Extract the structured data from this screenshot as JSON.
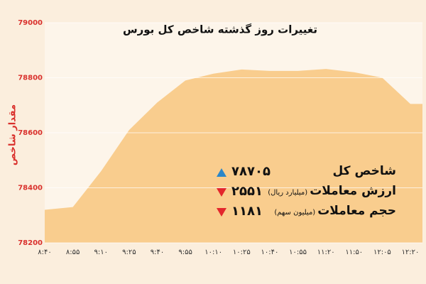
{
  "chart_data": {
    "type": "area",
    "title": "تغییرات روز گذشته شاخص کل بورس",
    "y_label": "مقدار شاخص",
    "categories": [
      "۸:۴۰",
      "۸:۵۵",
      "۹:۱۰",
      "۹:۲۵",
      "۹:۴۰",
      "۹:۵۵",
      "۱۰:۱۰",
      "۱۰:۲۵",
      "۱۰:۴۰",
      "۱۰:۵۵",
      "۱۱:۲۰",
      "۱۱:۵۰",
      "۱۲:۰۵",
      "۱۲:۲۰"
    ],
    "values": [
      78320,
      78330,
      78460,
      78610,
      78710,
      78790,
      78815,
      78830,
      78825,
      78825,
      78832,
      78820,
      78800,
      78705
    ],
    "color": "#f9cd8e",
    "ylim": [
      78200,
      79000
    ],
    "yticks": [
      78200,
      78400,
      78600,
      78800,
      79000
    ],
    "grid": true,
    "annotations": [
      {
        "label": "شاخص کل",
        "value": "۷۸۷۰۵",
        "direction": "up",
        "color": "#2a86c8"
      },
      {
        "label": "ارزش معاملات",
        "unit": "(میلیارد ریال)",
        "value": "۲۵۵۱",
        "direction": "down",
        "color": "#e3262c"
      },
      {
        "label": "حجم معاملات",
        "unit": "(میلیون سهم)",
        "value": "۱۱۸۱",
        "direction": "down",
        "color": "#e3262c"
      }
    ]
  }
}
